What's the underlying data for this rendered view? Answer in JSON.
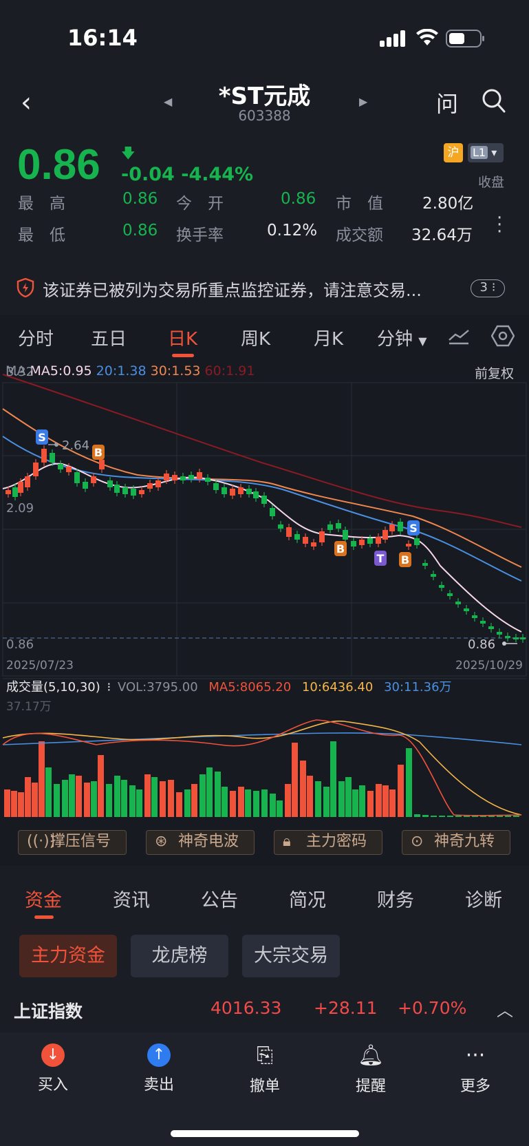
{
  "status_bar": {
    "time": "16:14"
  },
  "nav": {
    "back": "‹",
    "title": "*ST元成",
    "code": "603388",
    "ask": "问"
  },
  "quote": {
    "price": "0.86",
    "change": "-0.04",
    "change_pct": "-4.44%",
    "exchange_badge": "沪",
    "level_badge": "L1",
    "status": "收盘",
    "rows": [
      [
        {
          "label": "最　高",
          "value": "0.86"
        },
        {
          "label": "今　开",
          "value": "0.86"
        },
        {
          "label": "市　值",
          "value": "2.80亿"
        }
      ],
      [
        {
          "label": "最　低",
          "value": "0.86"
        },
        {
          "label": "换手率",
          "value": "0.12%"
        },
        {
          "label": "成交额",
          "value": "32.64万"
        }
      ]
    ]
  },
  "warning": {
    "text": "该证券已被列为交易所重点监控证券，请注意交易...",
    "count": "3"
  },
  "k_tabs": [
    "分时",
    "五日",
    "日K",
    "周K",
    "月K",
    "分钟"
  ],
  "k_tab_active": "日K",
  "ma_legend": {
    "label": "MA",
    "ma5": "MA5:0.95",
    "ma20": "20:1.38",
    "ma30": "30:1.53",
    "ma60": "60:1.91"
  },
  "adjust_mode": "前复权",
  "colors": {
    "up": "#f0533a",
    "down": "#16b34f",
    "ma5": "#f5d7e8",
    "ma20": "#4a90e2",
    "ma30": "#f0874f",
    "ma60": "#8b1a24"
  },
  "chart_data": {
    "type": "candlestick",
    "y_axis_labels": [
      "3.32",
      "2.09",
      "0.86"
    ],
    "price_marks": {
      "peak": "2.64",
      "last": "0.86"
    },
    "x_axis_labels": [
      "2025/07/23",
      "2025/10/29"
    ],
    "markers": [
      "S",
      "B",
      "B",
      "T",
      "B",
      "S"
    ],
    "volume": {
      "legend": "成交量(5,10,30)",
      "vol": "VOL:3795.00",
      "ma5": "MA5:8065.20",
      "ma10": "10:6436.40",
      "ma30": "30:11.36万",
      "axis_max": "37.17万"
    }
  },
  "signals": [
    "撑压信号",
    "神奇电波",
    "主力密码",
    "神奇九转"
  ],
  "bottom_tabs": [
    "资金",
    "资讯",
    "公告",
    "简况",
    "财务",
    "诊断"
  ],
  "sub_tabs": [
    "主力资金",
    "龙虎榜",
    "大宗交易"
  ],
  "index_row": {
    "name": "上证指数",
    "value": "4016.33",
    "change": "+28.11",
    "pct": "+0.70%"
  },
  "bottom_bar": [
    "买入",
    "卖出",
    "撤单",
    "提醒",
    "更多"
  ]
}
